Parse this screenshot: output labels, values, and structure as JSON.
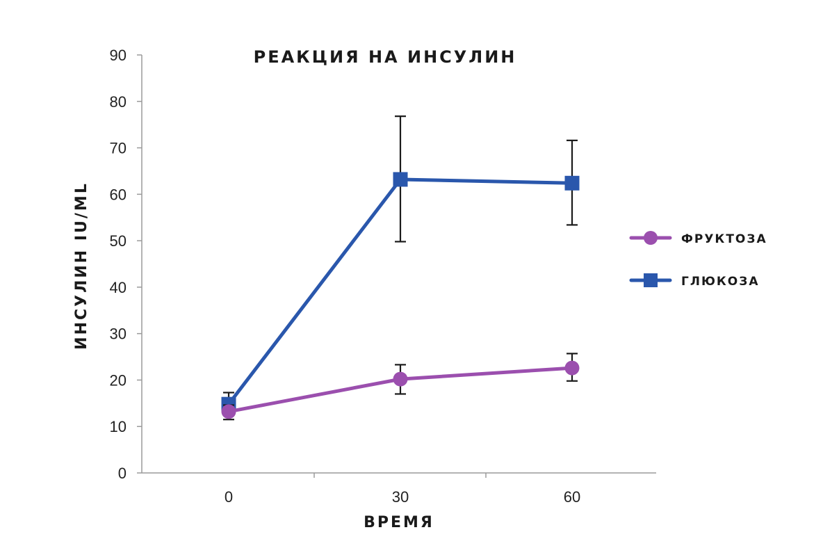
{
  "chart_data": {
    "type": "line",
    "title": "РЕАКЦИЯ НА ИНСУЛИН",
    "xlabel": "ВРЕМЯ",
    "ylabel": "ИНСУЛИН IU/ML",
    "x": [
      0,
      30,
      60
    ],
    "x_tick_labels": [
      "0",
      "30",
      "60"
    ],
    "ylim": [
      0,
      90
    ],
    "y_ticks": [
      0,
      10,
      20,
      30,
      40,
      50,
      60,
      70,
      80,
      90
    ],
    "y_tick_labels": [
      "0",
      "10",
      "20",
      "30",
      "40",
      "50",
      "60",
      "70",
      "80",
      "90"
    ],
    "grid": false,
    "legend_position": "right",
    "series": [
      {
        "name": "ФРУКТОЗА",
        "color": "#9b4fae",
        "marker": "circle",
        "values": [
          13.2,
          20.2,
          22.6
        ],
        "error_low": [
          11.5,
          17.0,
          19.8
        ],
        "error_high": [
          14.6,
          23.3,
          25.7
        ]
      },
      {
        "name": "ГЛЮКОЗА",
        "color": "#2a57ac",
        "marker": "square",
        "values": [
          14.8,
          63.2,
          62.4
        ],
        "error_low": [
          13.2,
          49.8,
          53.4
        ],
        "error_high": [
          17.3,
          76.8,
          71.6
        ]
      }
    ]
  }
}
